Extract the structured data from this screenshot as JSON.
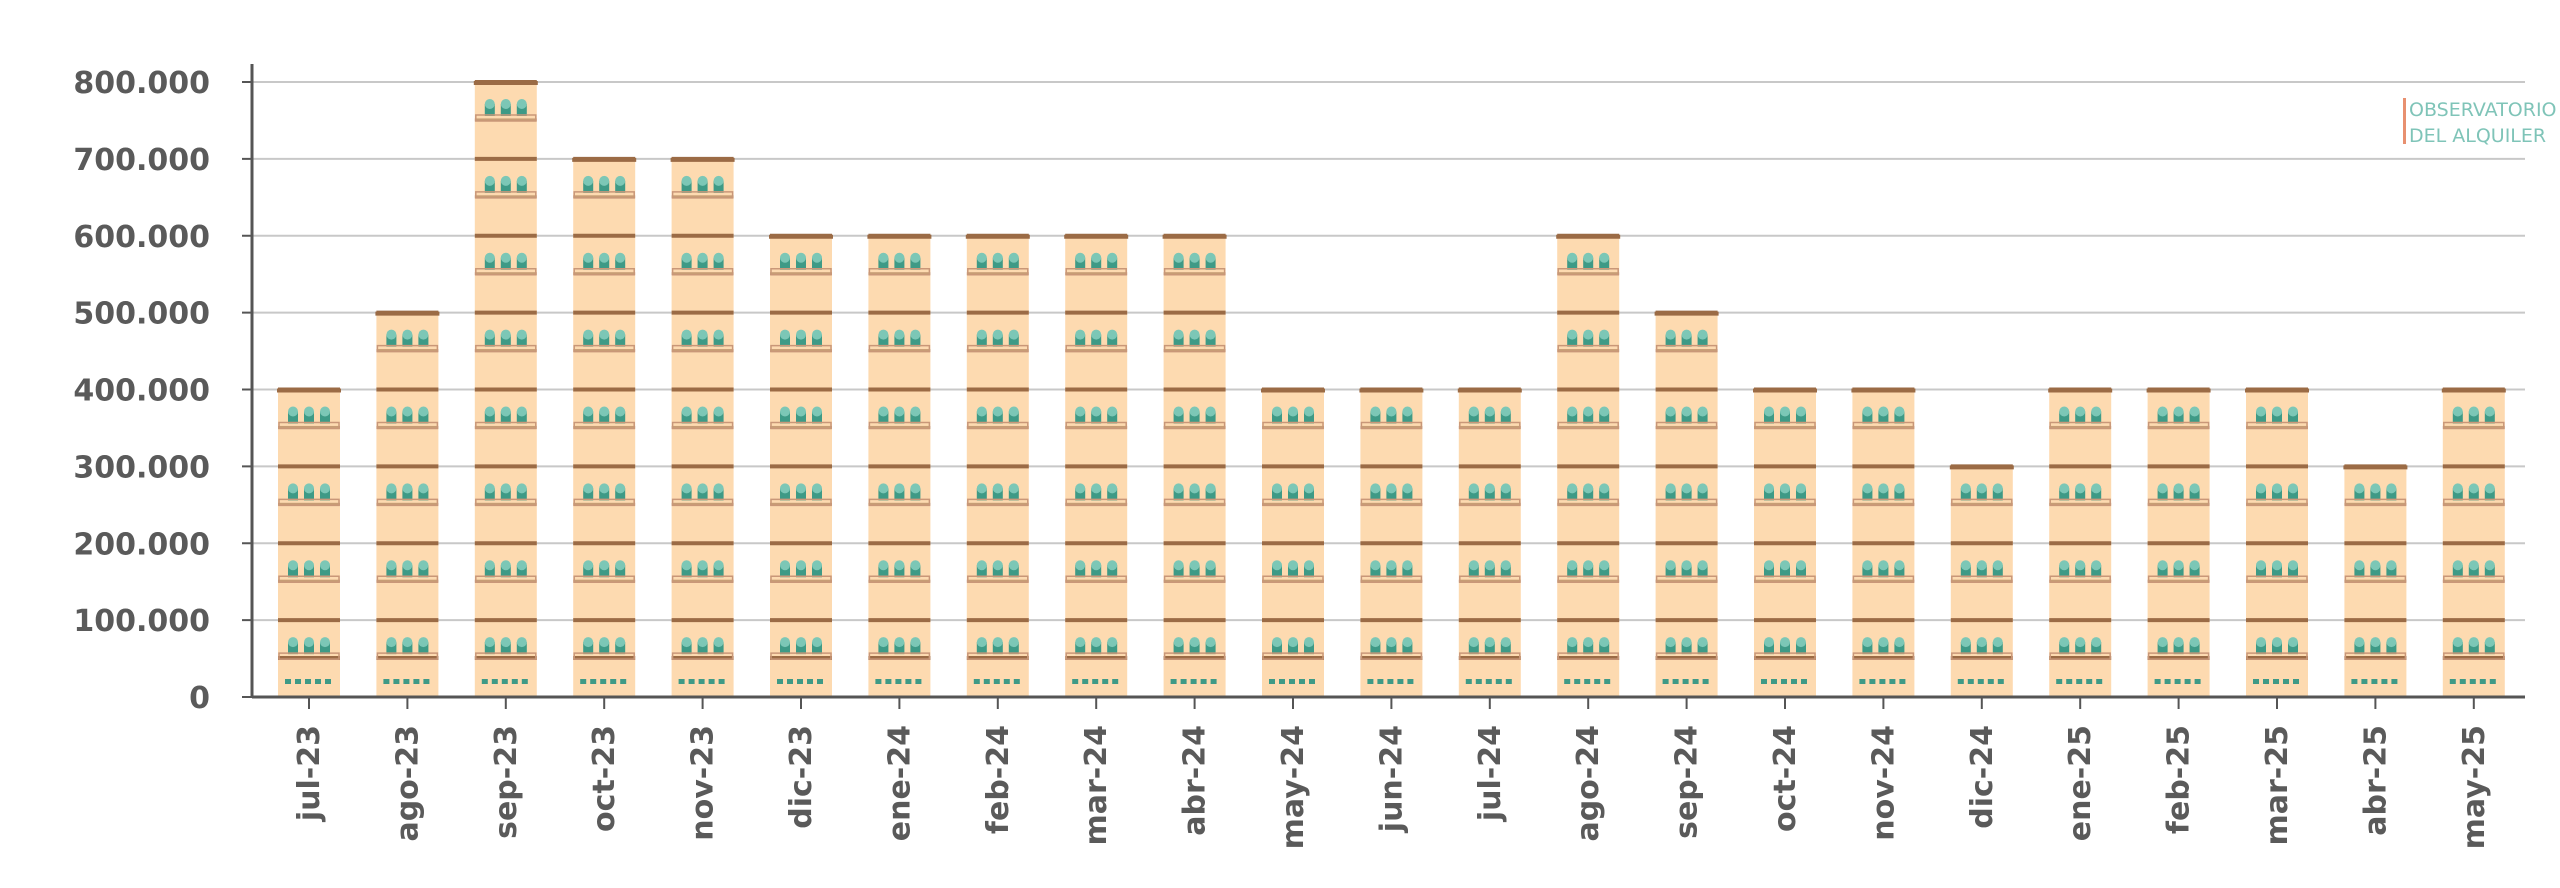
{
  "chart_data": {
    "type": "bar",
    "title": "",
    "xlabel": "",
    "ylabel": "",
    "ylim": [
      0,
      800000
    ],
    "yticks": [
      0,
      100000,
      200000,
      300000,
      400000,
      500000,
      600000,
      700000,
      800000
    ],
    "ytick_labels": [
      "0",
      "100.000",
      "200.000",
      "300.000",
      "400.000",
      "500.000",
      "600.000",
      "700.000",
      "800.000"
    ],
    "grid": true,
    "categories": [
      "jul-23",
      "ago-23",
      "sep-23",
      "oct-23",
      "nov-23",
      "dic-23",
      "ene-24",
      "feb-24",
      "mar-24",
      "abr-24",
      "may-24",
      "jun-24",
      "jul-24",
      "ago-24",
      "sep-24",
      "oct-24",
      "nov-24",
      "dic-24",
      "ene-25",
      "feb-25",
      "mar-25",
      "abr-25",
      "may-25"
    ],
    "values": [
      400000,
      500000,
      800000,
      700000,
      700000,
      600000,
      600000,
      600000,
      600000,
      600000,
      400000,
      400000,
      400000,
      600000,
      500000,
      400000,
      400000,
      300000,
      400000,
      400000,
      400000,
      300000,
      400000
    ],
    "bar_style": "building"
  },
  "logo": {
    "line1": "OBSERVATORIO",
    "line2": "DEL ALQUILER"
  },
  "colors": {
    "building": "#fddab0",
    "floor_line": "#9b6b45",
    "window": "#3e9a86",
    "window_light": "#7cc7b6",
    "balcony": "#c99778",
    "grid": "#c8c8c8",
    "axis": "#555555",
    "logo_text": "#7fc4b8",
    "logo_accent": "#e89070"
  }
}
